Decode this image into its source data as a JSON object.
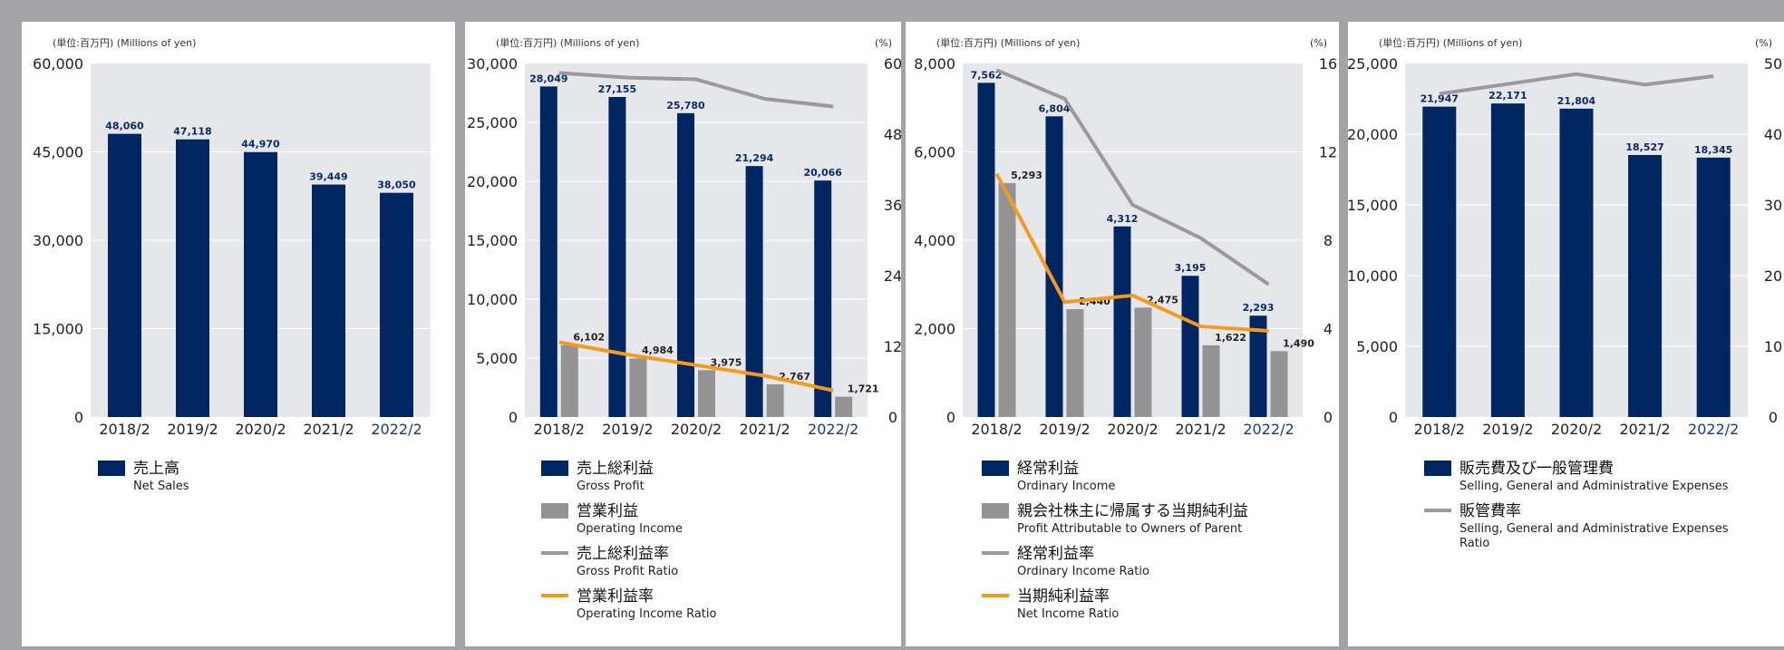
{
  "colors": {
    "navy": "#002662",
    "gray_bar": "#939393",
    "gray_line": "#9a9a9a",
    "orange": "#f39a21",
    "plot_bg": "#e6e7ea"
  },
  "charts": [
    {
      "unit_left": "(単位:百万円) (Millions of yen)",
      "unit_right": "",
      "left_ticks": [
        "60,000",
        "45,000",
        "30,000",
        "15,000",
        "0"
      ],
      "right_ticks": [],
      "legend": [
        {
          "kind": "bar",
          "color": "navy",
          "jp": "売上高",
          "en": "Net Sales"
        }
      ]
    },
    {
      "unit_left": "(単位:百万円) (Millions of yen)",
      "unit_right": "(%)",
      "left_ticks": [
        "30,000",
        "25,000",
        "20,000",
        "15,000",
        "10,000",
        "5,000",
        "0"
      ],
      "right_ticks": [
        "60",
        "48",
        "36",
        "24",
        "12",
        "0"
      ],
      "legend": [
        {
          "kind": "bar",
          "color": "navy",
          "jp": "売上総利益",
          "en": "Gross Profit"
        },
        {
          "kind": "bar",
          "color": "gray_bar",
          "jp": "営業利益",
          "en": "Operating Income"
        },
        {
          "kind": "line",
          "color": "gray_line",
          "jp": "売上総利益率",
          "en": "Gross Profit Ratio"
        },
        {
          "kind": "line",
          "color": "orange",
          "jp": "営業利益率",
          "en": "Operating Income Ratio"
        }
      ]
    },
    {
      "unit_left": "(単位:百万円) (Millions of yen)",
      "unit_right": "(%)",
      "left_ticks": [
        "8,000",
        "6,000",
        "4,000",
        "2,000",
        "0"
      ],
      "right_ticks": [
        "16",
        "12",
        "8",
        "4",
        "0"
      ],
      "legend": [
        {
          "kind": "bar",
          "color": "navy",
          "jp": "経常利益",
          "en": "Ordinary Income"
        },
        {
          "kind": "bar",
          "color": "gray_bar",
          "jp": "親会社株主に帰属する当期純利益",
          "en": "Profit Attributable to Owners of Parent"
        },
        {
          "kind": "line",
          "color": "gray_line",
          "jp": "経常利益率",
          "en": "Ordinary Income Ratio"
        },
        {
          "kind": "line",
          "color": "orange",
          "jp": "当期純利益率",
          "en": "Net Income Ratio"
        }
      ]
    },
    {
      "unit_left": "(単位:百万円) (Millions of yen)",
      "unit_right": "(%)",
      "left_ticks": [
        "25,000",
        "20,000",
        "15,000",
        "10,000",
        "5,000",
        "0"
      ],
      "right_ticks": [
        "50",
        "40",
        "30",
        "20",
        "10",
        "0"
      ],
      "legend": [
        {
          "kind": "bar",
          "color": "navy",
          "jp": "販売費及び一般管理費",
          "en": "Selling, General and Administrative Expenses"
        },
        {
          "kind": "line",
          "color": "gray_line",
          "jp": "販管費率",
          "en": "Selling, General and Administrative Expenses\nRatio"
        }
      ]
    }
  ],
  "chart_data": [
    {
      "type": "bar",
      "categories": [
        "2018/2",
        "2019/2",
        "2020/2",
        "2021/2",
        "2022/2"
      ],
      "ylim": [
        0,
        60000
      ],
      "series": [
        {
          "name": "売上高 Net Sales",
          "kind": "bar",
          "color": "navy",
          "values": [
            48060,
            47118,
            44970,
            39449,
            38050
          ],
          "labels": [
            "48,060",
            "47,118",
            "44,970",
            "39,449",
            "38,050"
          ]
        }
      ]
    },
    {
      "type": "bar",
      "categories": [
        "2018/2",
        "2019/2",
        "2020/2",
        "2021/2",
        "2022/2"
      ],
      "ylim": [
        0,
        30000
      ],
      "y2lim": [
        0,
        60
      ],
      "series": [
        {
          "name": "売上総利益 Gross Profit",
          "kind": "bar",
          "color": "navy",
          "values": [
            28049,
            27155,
            25780,
            21294,
            20066
          ],
          "labels": [
            "28,049",
            "27,155",
            "25,780",
            "21,294",
            "20,066"
          ]
        },
        {
          "name": "営業利益 Operating Income",
          "kind": "bar",
          "color": "gray_bar",
          "values": [
            6102,
            4984,
            3975,
            2767,
            1721
          ],
          "labels": [
            "6,102",
            "4,984",
            "3,975",
            "2,767",
            "1,721"
          ]
        },
        {
          "name": "売上総利益率 Gross Profit Ratio",
          "kind": "line",
          "axis": "right",
          "color": "gray_line",
          "values": [
            58.4,
            57.6,
            57.3,
            54.0,
            52.7
          ]
        },
        {
          "name": "営業利益率 Operating Income Ratio",
          "kind": "line",
          "axis": "right",
          "color": "orange",
          "values": [
            12.7,
            10.6,
            8.8,
            7.0,
            4.5
          ]
        }
      ]
    },
    {
      "type": "bar",
      "categories": [
        "2018/2",
        "2019/2",
        "2020/2",
        "2021/2",
        "2022/2"
      ],
      "ylim": [
        0,
        8000
      ],
      "y2lim": [
        0,
        16
      ],
      "series": [
        {
          "name": "経常利益 Ordinary Income",
          "kind": "bar",
          "color": "navy",
          "values": [
            7562,
            6804,
            4312,
            3195,
            2293
          ],
          "labels": [
            "7,562",
            "6,804",
            "4,312",
            "3,195",
            "2,293"
          ]
        },
        {
          "name": "親会社株主に帰属する当期純利益 Profit Attributable to Owners of Parent",
          "kind": "bar",
          "color": "gray_bar",
          "values": [
            5293,
            2440,
            2475,
            1622,
            1490
          ],
          "labels": [
            "5,293",
            "2,440",
            "2,475",
            "1,622",
            "1,490"
          ]
        },
        {
          "name": "経常利益率 Ordinary Income Ratio",
          "kind": "line",
          "axis": "right",
          "color": "gray_line",
          "values": [
            15.7,
            14.4,
            9.6,
            8.1,
            6.0
          ]
        },
        {
          "name": "当期純利益率 Net Income Ratio",
          "kind": "line",
          "axis": "right",
          "color": "orange",
          "values": [
            11.0,
            5.2,
            5.5,
            4.1,
            3.9
          ]
        }
      ]
    },
    {
      "type": "bar",
      "categories": [
        "2018/2",
        "2019/2",
        "2020/2",
        "2021/2",
        "2022/2"
      ],
      "ylim": [
        0,
        25000
      ],
      "y2lim": [
        0,
        50
      ],
      "series": [
        {
          "name": "販売費及び一般管理費 Selling, General and Administrative Expenses",
          "kind": "bar",
          "color": "navy",
          "values": [
            21947,
            22171,
            21804,
            18527,
            18345
          ],
          "labels": [
            "21,947",
            "22,171",
            "21,804",
            "18,527",
            "18,345"
          ]
        },
        {
          "name": "販管費率 Selling, General and Administrative Expenses Ratio",
          "kind": "line",
          "axis": "right",
          "color": "gray_line",
          "values": [
            45.7,
            47.1,
            48.5,
            47.0,
            48.2
          ]
        }
      ]
    }
  ]
}
